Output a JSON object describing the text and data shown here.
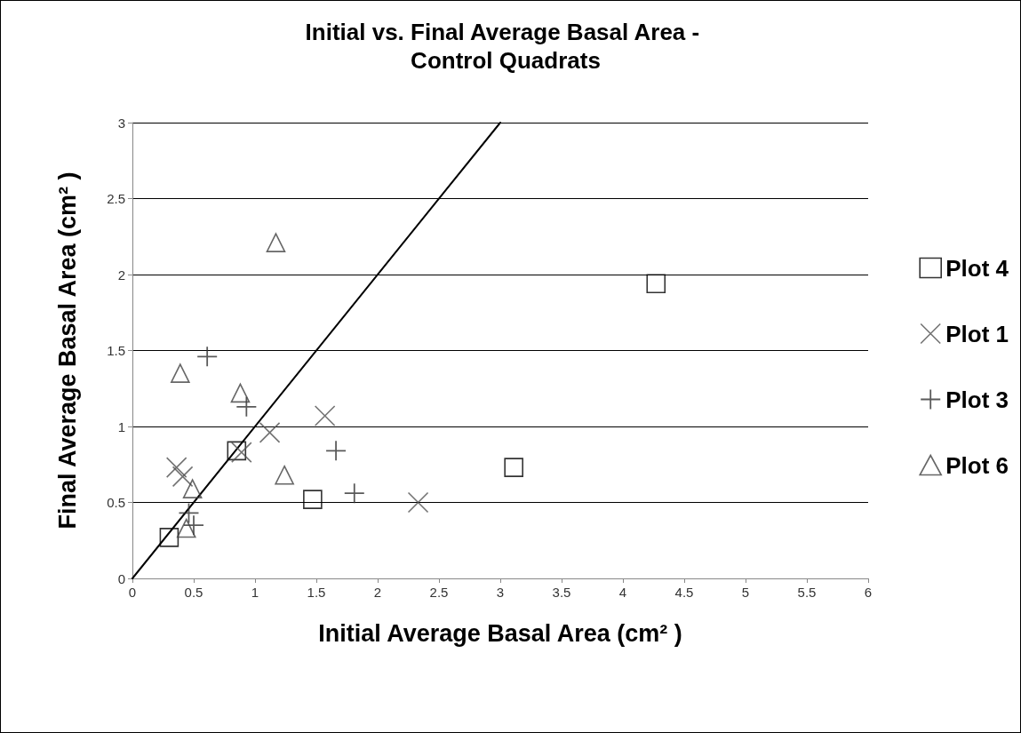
{
  "chart_data": {
    "type": "scatter",
    "title": "Initial vs. Final Average Basal Area - Control Quadrats",
    "xlabel": "Initial Average Basal Area (cm² )",
    "ylabel": "Final Average Basal Area (cm² )",
    "xlim": [
      0,
      6
    ],
    "xticks": [
      0,
      0.5,
      1,
      1.5,
      2,
      2.5,
      3,
      3.5,
      4,
      4.5,
      5,
      5.5,
      6
    ],
    "ylim": [
      0,
      3
    ],
    "yticks": [
      0,
      0.5,
      1,
      1.5,
      2,
      2.5,
      3
    ],
    "grid": "y",
    "legend": "right",
    "series": [
      {
        "name": "Plot 4",
        "color": "#000000",
        "marker": "square",
        "x": [
          0.3,
          0.85,
          1.47,
          3.11,
          4.27
        ],
        "values": [
          0.27,
          0.84,
          0.52,
          0.73,
          1.94
        ]
      },
      {
        "name": "Plot 1",
        "color": "#505050",
        "marker": "x",
        "x": [
          0.36,
          0.41,
          0.89,
          1.12,
          1.57,
          2.33
        ],
        "values": [
          0.73,
          0.67,
          0.83,
          0.96,
          1.07,
          0.5
        ]
      },
      {
        "name": "Plot 3",
        "color": "#303030",
        "marker": "cross",
        "x": [
          0.61,
          0.93,
          1.66,
          1.81,
          0.46,
          0.5
        ],
        "values": [
          1.46,
          1.13,
          0.84,
          0.56,
          0.43,
          0.35
        ]
      },
      {
        "name": "Plot 6",
        "color": "#404040",
        "marker": "triangle",
        "x": [
          0.39,
          0.88,
          1.17,
          1.24,
          0.49,
          0.44
        ],
        "values": [
          1.35,
          1.22,
          2.21,
          0.68,
          0.59,
          0.33
        ]
      },
      {
        "type": "line",
        "color": "#000000",
        "marker": "none",
        "line_style": "solid",
        "x": [
          0,
          3
        ],
        "values": [
          0,
          3
        ]
      }
    ]
  }
}
